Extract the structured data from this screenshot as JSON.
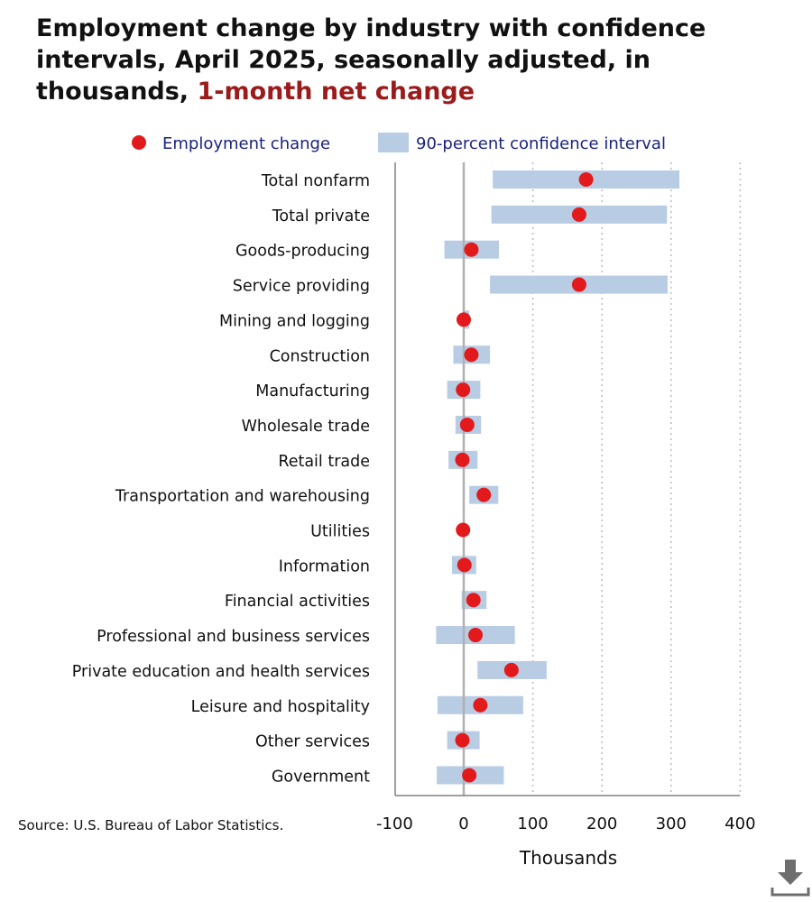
{
  "title": {
    "main": "Employment change by industry with confidence intervals, April 2025, seasonally adjusted, in thousands,",
    "highlight": "1-month net change"
  },
  "legend": {
    "point_label": "Employment change",
    "interval_label": "90-percent confidence interval",
    "text_color": "#1a237e"
  },
  "source": "Source: U.S. Bureau of Labor Statistics.",
  "colors": {
    "point": "#e31a1c",
    "interval": "#b8cce4",
    "title_highlight": "#9b1b1b",
    "axis": "#808080",
    "grid": "#bbbbbb"
  },
  "icons": {
    "download": "download-icon"
  },
  "chart_data": {
    "type": "dot-interval",
    "xlabel": "Thousands",
    "xlim": [
      -100,
      400
    ],
    "xticks": [
      -100,
      0,
      100,
      200,
      300,
      400
    ],
    "xtick_labels": [
      "-100",
      "0",
      "100",
      "200",
      "300",
      "400"
    ],
    "grid": "vertical dotted at 100, 200, 300, 400",
    "legend_position": "top",
    "categories": [
      "Total nonfarm",
      "Total private",
      "Goods-producing",
      "Service providing",
      "Mining and logging",
      "Construction",
      "Manufacturing",
      "Wholesale trade",
      "Retail trade",
      "Transportation and warehousing",
      "Utilities",
      "Information",
      "Financial activities",
      "Professional and business services",
      "Private education and health services",
      "Leisure and hospitality",
      "Other services",
      "Government"
    ],
    "series": [
      {
        "name": "Employment change",
        "values": [
          177,
          167,
          11,
          167,
          0,
          11,
          -1,
          5,
          -2,
          29,
          -1,
          1,
          14,
          17,
          69,
          24,
          -2,
          8
        ]
      },
      {
        "name": "90-percent confidence interval",
        "lower": [
          42,
          40,
          -28,
          38,
          -1,
          -15,
          -24,
          -12,
          -22,
          8,
          -1,
          -17,
          -3,
          -40,
          20,
          -38,
          -24,
          -39
        ],
        "upper": [
          312,
          294,
          51,
          295,
          8,
          38,
          24,
          25,
          20,
          50,
          0,
          18,
          33,
          74,
          120,
          86,
          23,
          58
        ]
      }
    ]
  }
}
